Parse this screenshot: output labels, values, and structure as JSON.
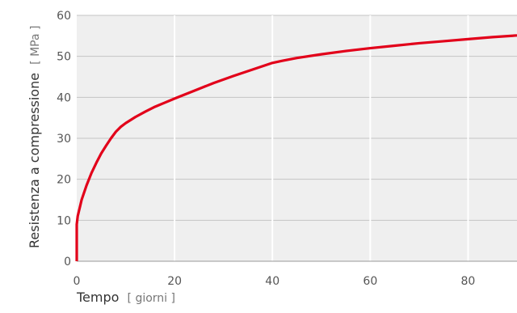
{
  "chart_data": {
    "type": "line",
    "title": "",
    "xlabel": "Tempo",
    "xlabel_unit": "[ giorni ]",
    "ylabel": "Resistenza a compressione",
    "ylabel_unit": "[ MPa ]",
    "xlim": [
      0,
      90
    ],
    "ylim": [
      0,
      60
    ],
    "x_ticks": [
      "0",
      "20",
      "40",
      "60",
      "80"
    ],
    "y_ticks": [
      "0",
      "10",
      "20",
      "30",
      "40",
      "50",
      "60"
    ],
    "grid": true,
    "legend": "none",
    "colors": {
      "line": "#e2001a",
      "plot_bg": "#efefef",
      "grid": "#ffffff"
    },
    "series": [
      {
        "x": [
          0,
          0,
          0.2,
          0.5,
          1,
          2,
          3,
          4,
          5,
          6,
          7,
          8,
          9,
          10,
          12,
          14,
          16,
          18,
          20,
          24,
          28,
          32,
          36,
          40,
          42,
          45,
          50,
          55,
          60,
          65,
          70,
          75,
          80,
          85,
          90
        ],
        "values": [
          0,
          9,
          11,
          12.5,
          15,
          18.5,
          21.5,
          24,
          26.3,
          28.2,
          30,
          31.6,
          32.8,
          33.7,
          35.2,
          36.5,
          37.7,
          38.7,
          39.7,
          41.6,
          43.5,
          45.2,
          46.8,
          48.4,
          48.9,
          49.6,
          50.5,
          51.3,
          52,
          52.6,
          53.2,
          53.7,
          54.2,
          54.7,
          55.1
        ]
      }
    ]
  }
}
